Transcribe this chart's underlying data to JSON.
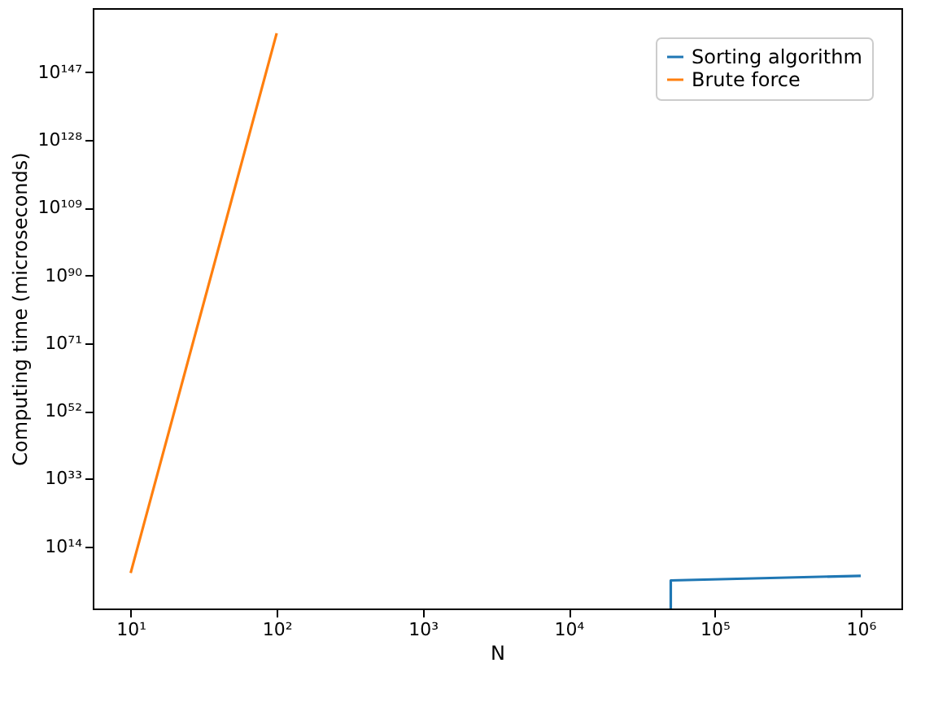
{
  "chart_data": {
    "type": "line",
    "xlabel": "N",
    "ylabel": "Computing time (microseconds)",
    "log": "xy",
    "grid": false,
    "legend": "top right",
    "marker": "none",
    "line_style": "solid",
    "xlim": [
      5.5,
      1900000.0
    ],
    "xticks": [
      {
        "value": 10,
        "label": "10¹"
      },
      {
        "value": 100,
        "label": "10²"
      },
      {
        "value": 1000,
        "label": "10³"
      },
      {
        "value": 10000,
        "label": "10⁴"
      },
      {
        "value": 100000,
        "label": "10⁵"
      },
      {
        "value": 1000000,
        "label": "10⁶"
      }
    ],
    "ylim": [
      0.0004,
      1e+165
    ],
    "yticks": [
      {
        "value": 100000000000000.0,
        "label": "10¹⁴"
      },
      {
        "value": 1e+33,
        "label": "10³³"
      },
      {
        "value": 1e+52,
        "label": "10⁵²"
      },
      {
        "value": 1e+71,
        "label": "10⁷¹"
      },
      {
        "value": 1e+90,
        "label": "10⁹⁰"
      },
      {
        "value": 1e+109,
        "label": "10¹⁰⁹"
      },
      {
        "value": 1e+128,
        "label": "10¹²⁸"
      },
      {
        "value": 1e+147,
        "label": "10¹⁴⁷"
      }
    ],
    "series": [
      {
        "name": "Sorting algorithm",
        "color": "#1f77b4",
        "x": [
          50000,
          50000,
          1000000
        ],
        "values": [
          0.0004,
          30000,
          600000
        ]
      },
      {
        "name": "Brute force",
        "color": "#ff7f0e",
        "x": [
          10,
          100
        ],
        "values": [
          3600000.0,
          9.3e+157
        ]
      }
    ]
  }
}
